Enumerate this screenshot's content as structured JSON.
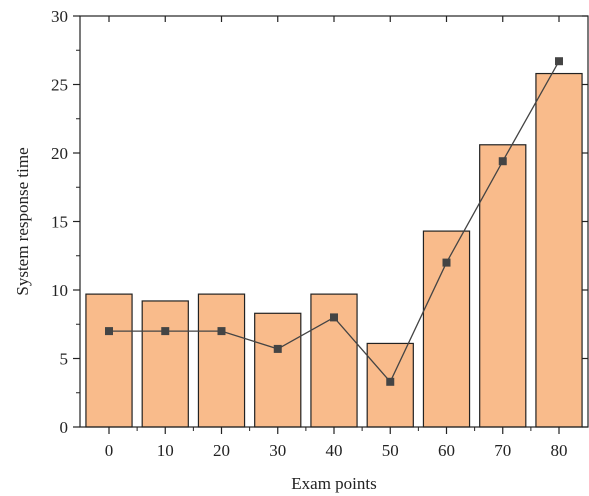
{
  "chart_data": {
    "type": "bar+line",
    "xlabel": "Exam points",
    "ylabel": "System response time",
    "categories": [
      "0",
      "10",
      "20",
      "30",
      "40",
      "50",
      "60",
      "70",
      "80"
    ],
    "ylim": [
      0,
      30
    ],
    "yticks": [
      "0",
      "5",
      "10",
      "15",
      "20",
      "25",
      "30"
    ],
    "grid": false,
    "series": [
      {
        "kind": "bar",
        "values": [
          9.7,
          9.2,
          9.7,
          8.3,
          9.7,
          6.1,
          14.3,
          20.6,
          25.8
        ]
      },
      {
        "kind": "line",
        "marker": "square",
        "values": [
          7.0,
          7.0,
          7.0,
          5.7,
          8.0,
          3.3,
          12.0,
          19.4,
          26.7
        ]
      }
    ],
    "colors": {
      "bar_fill": "#f9bb8b",
      "bar_stroke": "#222222",
      "line": "#444444",
      "marker": "#444444"
    }
  }
}
